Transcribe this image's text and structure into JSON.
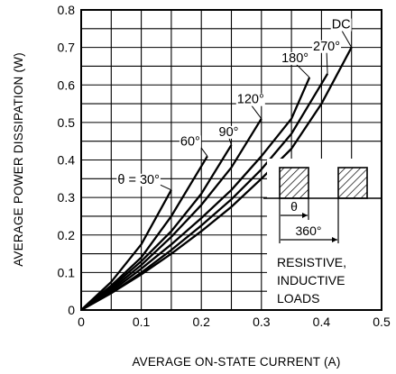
{
  "chart_data": {
    "type": "line",
    "xlabel": "AVERAGE ON-STATE CURRENT  (A)",
    "ylabel": "AVERAGE POWER DISSIPATION  (W)",
    "xlim": [
      0,
      0.5
    ],
    "ylim": [
      0,
      0.8
    ],
    "x_ticks": [
      "0",
      "0.1",
      "0.2",
      "0.3",
      "0.4",
      "0.5"
    ],
    "y_ticks": [
      "0",
      "0.1",
      "0.2",
      "0.3",
      "0.4",
      "0.5",
      "0.6",
      "0.7",
      "0.8"
    ],
    "grid": true,
    "series": [
      {
        "name": "θ = 30°",
        "x": [
          0,
          0.05,
          0.1,
          0.15
        ],
        "y": [
          0,
          0.075,
          0.175,
          0.32
        ]
      },
      {
        "name": "60°",
        "x": [
          0,
          0.05,
          0.1,
          0.15,
          0.21
        ],
        "y": [
          0,
          0.065,
          0.14,
          0.25,
          0.41
        ]
      },
      {
        "name": "90°",
        "x": [
          0,
          0.05,
          0.1,
          0.15,
          0.2,
          0.25
        ],
        "y": [
          0,
          0.06,
          0.13,
          0.21,
          0.31,
          0.44
        ]
      },
      {
        "name": "120°",
        "x": [
          0,
          0.05,
          0.1,
          0.15,
          0.2,
          0.25,
          0.3
        ],
        "y": [
          0,
          0.055,
          0.12,
          0.195,
          0.28,
          0.38,
          0.51
        ]
      },
      {
        "name": "180°",
        "x": [
          0,
          0.05,
          0.1,
          0.15,
          0.2,
          0.25,
          0.3,
          0.35,
          0.38
        ],
        "y": [
          0,
          0.05,
          0.11,
          0.175,
          0.245,
          0.32,
          0.41,
          0.51,
          0.62
        ]
      },
      {
        "name": "270°",
        "x": [
          0,
          0.05,
          0.1,
          0.15,
          0.2,
          0.25,
          0.3,
          0.35,
          0.41
        ],
        "y": [
          0,
          0.045,
          0.1,
          0.16,
          0.225,
          0.295,
          0.375,
          0.47,
          0.63
        ]
      },
      {
        "name": "DC",
        "x": [
          0,
          0.05,
          0.1,
          0.15,
          0.2,
          0.25,
          0.3,
          0.35,
          0.4,
          0.45
        ],
        "y": [
          0,
          0.045,
          0.095,
          0.15,
          0.21,
          0.275,
          0.35,
          0.43,
          0.55,
          0.7
        ]
      }
    ],
    "inset": {
      "theta_label": "θ",
      "period_label": "360°",
      "note_lines": [
        "RESISTIVE,",
        "INDUCTIVE",
        "LOADS"
      ]
    }
  }
}
